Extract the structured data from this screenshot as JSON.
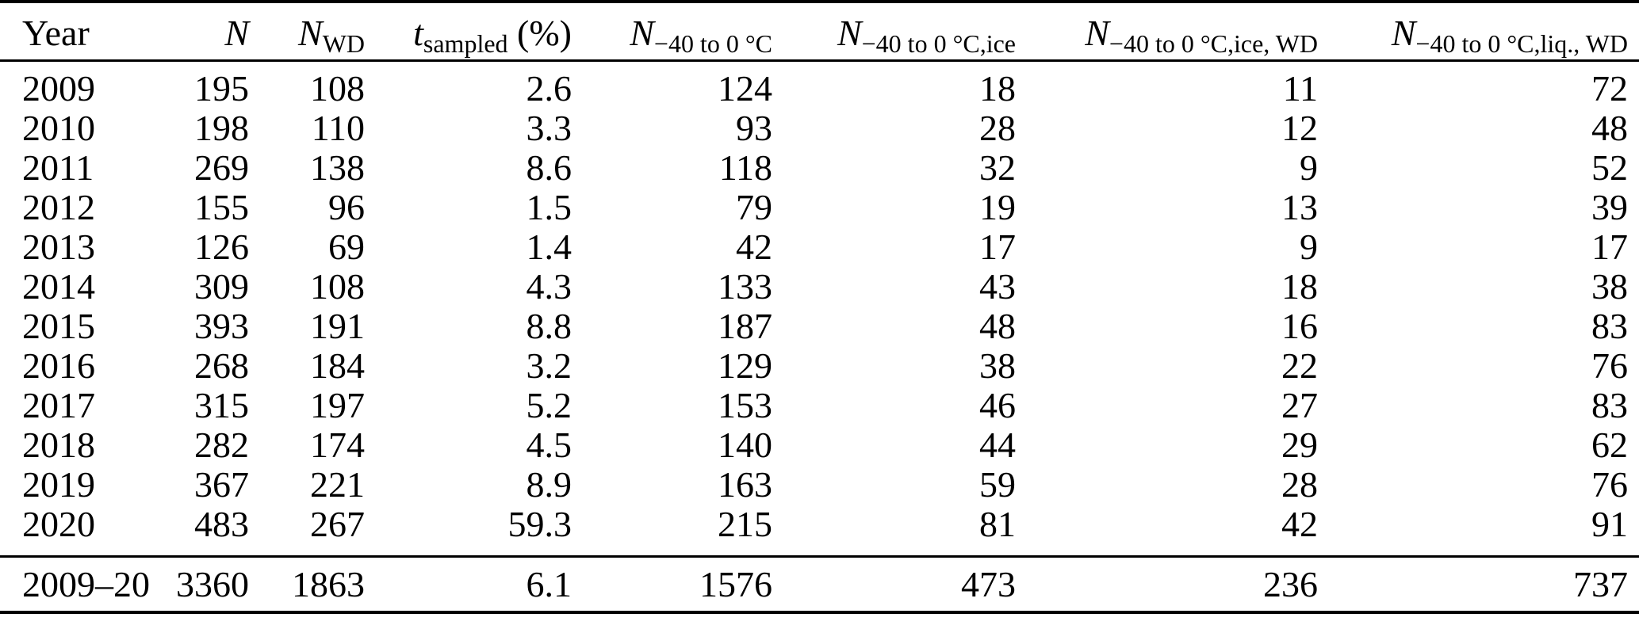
{
  "table": {
    "columns": [
      {
        "key": "year",
        "base": "Year",
        "italic": false,
        "sub": "",
        "suffix": "",
        "align": "left"
      },
      {
        "key": "n",
        "base": "N",
        "italic": true,
        "sub": "",
        "suffix": "",
        "align": "right"
      },
      {
        "key": "n-wd",
        "base": "N",
        "italic": true,
        "sub": "WD",
        "suffix": "",
        "align": "right"
      },
      {
        "key": "t-sampled",
        "base": "t",
        "italic": true,
        "sub": "sampled",
        "suffix": " (%)",
        "align": "right"
      },
      {
        "key": "n-range",
        "base": "N",
        "italic": true,
        "sub": "−40 to 0 °C",
        "suffix": "",
        "align": "right"
      },
      {
        "key": "n-range-ice",
        "base": "N",
        "italic": true,
        "sub": "−40 to 0 °C,ice",
        "suffix": "",
        "align": "right"
      },
      {
        "key": "n-range-ice-wd",
        "base": "N",
        "italic": true,
        "sub": "−40 to 0 °C,ice, WD",
        "suffix": "",
        "align": "right"
      },
      {
        "key": "n-range-liq-wd",
        "base": "N",
        "italic": true,
        "sub": "−40 to 0 °C,liq., WD",
        "suffix": "",
        "align": "right"
      }
    ],
    "rows": [
      [
        "2009",
        "195",
        "108",
        "2.6",
        "124",
        "18",
        "11",
        "72"
      ],
      [
        "2010",
        "198",
        "110",
        "3.3",
        "93",
        "28",
        "12",
        "48"
      ],
      [
        "2011",
        "269",
        "138",
        "8.6",
        "118",
        "32",
        "9",
        "52"
      ],
      [
        "2012",
        "155",
        "96",
        "1.5",
        "79",
        "19",
        "13",
        "39"
      ],
      [
        "2013",
        "126",
        "69",
        "1.4",
        "42",
        "17",
        "9",
        "17"
      ],
      [
        "2014",
        "309",
        "108",
        "4.3",
        "133",
        "43",
        "18",
        "38"
      ],
      [
        "2015",
        "393",
        "191",
        "8.8",
        "187",
        "48",
        "16",
        "83"
      ],
      [
        "2016",
        "268",
        "184",
        "3.2",
        "129",
        "38",
        "22",
        "76"
      ],
      [
        "2017",
        "315",
        "197",
        "5.2",
        "153",
        "46",
        "27",
        "83"
      ],
      [
        "2018",
        "282",
        "174",
        "4.5",
        "140",
        "44",
        "29",
        "62"
      ],
      [
        "2019",
        "367",
        "221",
        "8.9",
        "163",
        "59",
        "28",
        "76"
      ],
      [
        "2020",
        "483",
        "267",
        "59.3",
        "215",
        "81",
        "42",
        "91"
      ]
    ],
    "total_row": [
      "2009–20",
      "3360",
      "1863",
      "6.1",
      "1576",
      "473",
      "236",
      "737"
    ]
  }
}
